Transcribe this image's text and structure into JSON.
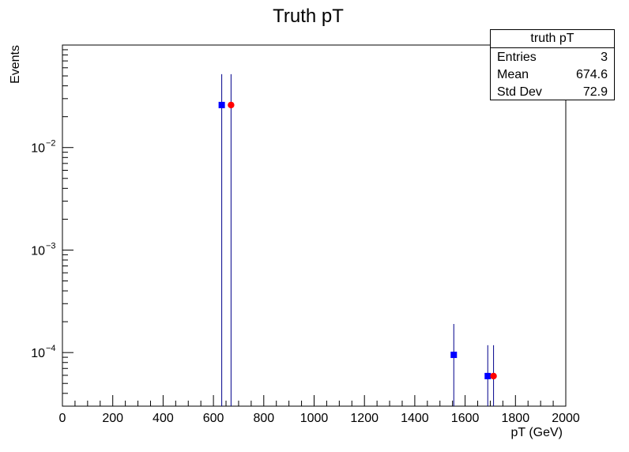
{
  "chart_data": {
    "type": "scatter",
    "title": "Truth pT",
    "xlabel": "pT (GeV)",
    "ylabel": "Events",
    "xlim": [
      0,
      2000
    ],
    "ylim": [
      3e-05,
      0.1
    ],
    "yscale": "log",
    "grid": false,
    "x_ticks": [
      "0",
      "200",
      "400",
      "600",
      "800",
      "1000",
      "1200",
      "1400",
      "1600",
      "1800",
      "2000"
    ],
    "y_ticks": [
      {
        "value": 0.0001,
        "base": "10",
        "exp": "−4"
      },
      {
        "value": 0.001,
        "base": "10",
        "exp": "−3"
      },
      {
        "value": 0.01,
        "base": "10",
        "exp": "−2"
      }
    ],
    "series": [
      {
        "marker": "square",
        "color": "#0000ff",
        "points": [
          {
            "x": 633,
            "y": 0.026,
            "err_low": 3e-05,
            "err_high": 0.052
          },
          {
            "x": 1555,
            "y": 9.5e-05,
            "err_low": 3e-05,
            "err_high": 0.00019
          },
          {
            "x": 1690,
            "y": 5.9e-05,
            "err_low": 3e-05,
            "err_high": 0.000118
          }
        ]
      },
      {
        "marker": "circle",
        "color": "#ff0000",
        "points": [
          {
            "x": 670,
            "y": 0.026,
            "err_low": 3e-05,
            "err_high": 0.052
          },
          {
            "x": 1713,
            "y": 5.9e-05,
            "err_low": 3e-05,
            "err_high": 0.000118
          }
        ]
      }
    ],
    "error_bar_color": "#00008b",
    "stats_box": {
      "title": "truth pT",
      "position": "top-right",
      "rows": [
        {
          "label": "Entries",
          "value": "3"
        },
        {
          "label": "Mean",
          "value": "674.6"
        },
        {
          "label": "Std Dev",
          "value": "72.9"
        }
      ]
    }
  }
}
